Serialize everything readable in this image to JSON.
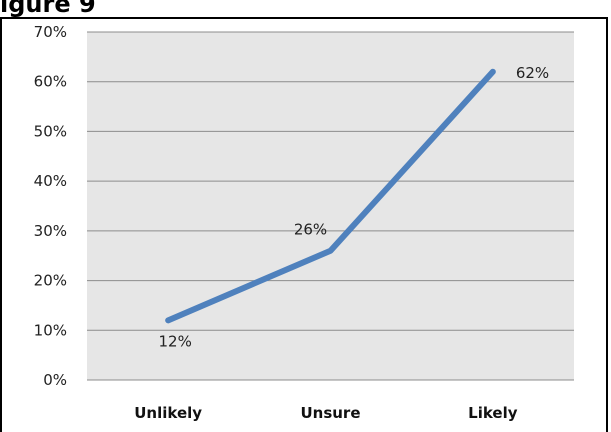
{
  "page_top_fragment": "igure 9",
  "chart_data": {
    "type": "line",
    "title": "",
    "xlabel": "",
    "ylabel": "",
    "categories": [
      "Unlikely",
      "Unsure",
      "Likely"
    ],
    "series": [
      {
        "values": [
          12,
          26,
          62
        ],
        "data_labels": [
          "12%",
          "26%",
          "62%"
        ],
        "color": "#4F81BD"
      }
    ],
    "ylim": [
      0,
      70
    ],
    "yticks": [
      0,
      10,
      20,
      30,
      40,
      50,
      60,
      70
    ],
    "ytick_labels": [
      "0%",
      "10%",
      "20%",
      "30%",
      "40%",
      "50%",
      "60%",
      "70%"
    ],
    "grid": true,
    "legend": "none",
    "plot_background": "#E6E6E6",
    "gridline_color": "#8C8C8C"
  }
}
